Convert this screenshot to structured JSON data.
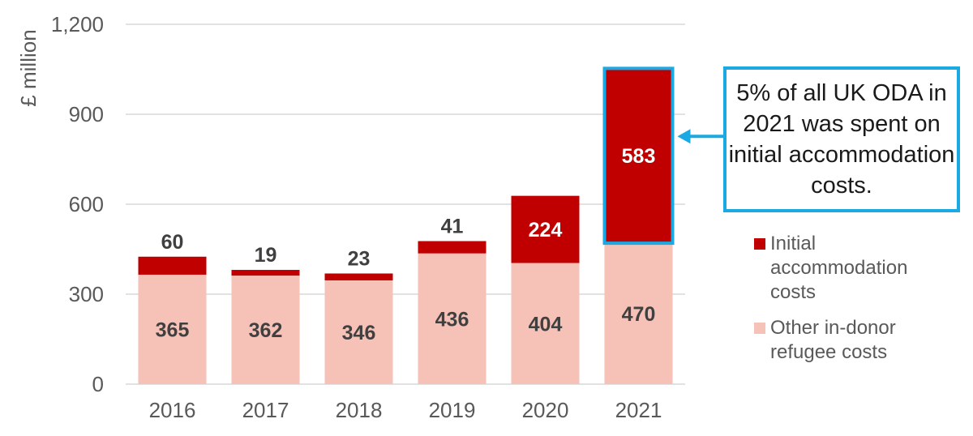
{
  "chart_data": {
    "type": "bar",
    "stacked": true,
    "categories": [
      "2016",
      "2017",
      "2018",
      "2019",
      "2020",
      "2021"
    ],
    "series": [
      {
        "name": "Other in-donor refugee costs",
        "values": [
          365,
          362,
          346,
          436,
          404,
          470
        ],
        "color": "#f6c2b8"
      },
      {
        "name": "Initial accommodation costs",
        "values": [
          60,
          19,
          23,
          41,
          224,
          583
        ],
        "color": "#c00000"
      }
    ],
    "ylabel": "£ million",
    "xlabel": "",
    "ylim": [
      0,
      1200
    ],
    "yticks": [
      "0",
      "300",
      "600",
      "900",
      "1,200"
    ],
    "grid": true,
    "legend_position": "right",
    "highlight_category": "2021",
    "highlight_color": "#1aa9e2",
    "annotation": "5% of all UK ODA in 2021 was spent on initial accommodation costs."
  },
  "legend": {
    "items": [
      {
        "label": "Initial accommodation costs",
        "color": "#c00000"
      },
      {
        "label": "Other in-donor refugee costs",
        "color": "#f6c2b8"
      }
    ]
  },
  "callout": {
    "text": "5% of all UK ODA in 2021 was spent on initial accommodation costs."
  }
}
